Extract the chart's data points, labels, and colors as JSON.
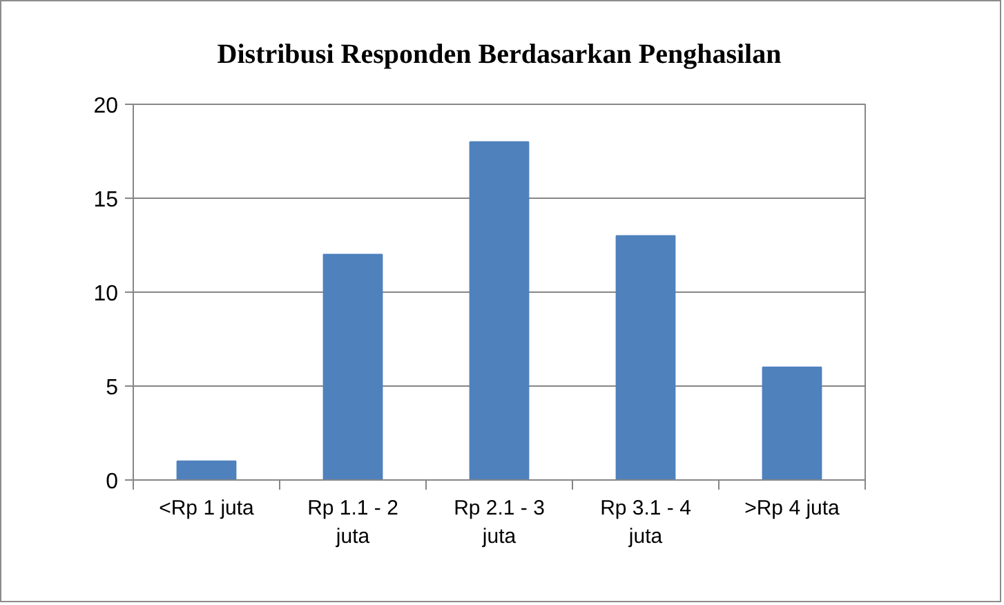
{
  "chart_data": {
    "type": "bar",
    "title": "Distribusi Responden Berdasarkan Penghasilan",
    "categories": [
      "<Rp 1 juta",
      "Rp 1.1 - 2 juta",
      "Rp 2.1 - 3 juta",
      "Rp 3.1 - 4 juta",
      ">Rp 4 juta"
    ],
    "values": [
      1,
      12,
      18,
      13,
      6
    ],
    "color": "#4f81bd",
    "ylim": [
      0,
      20
    ],
    "yticks": [
      0,
      5,
      10,
      15,
      20
    ],
    "grid": "y"
  }
}
